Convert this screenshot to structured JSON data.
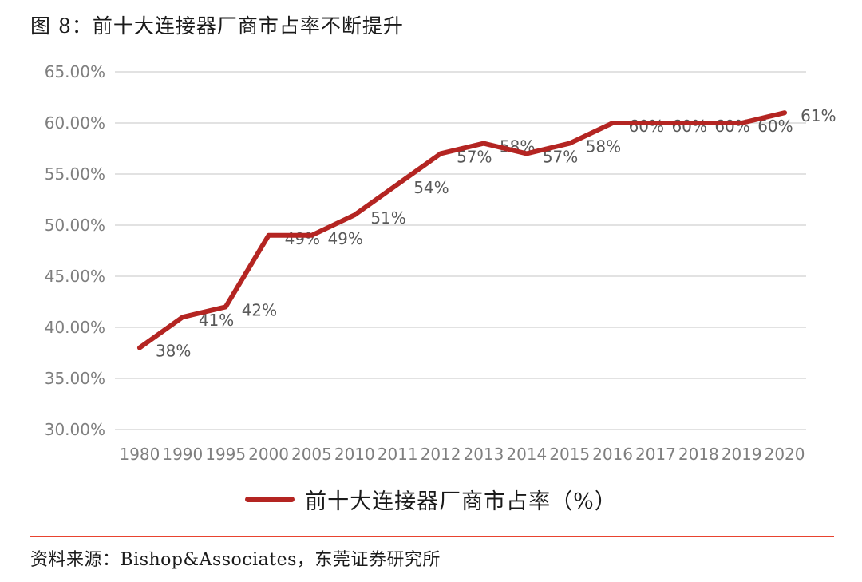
{
  "page": {
    "title": "图 8：前十大连接器厂商市占率不断提升",
    "source": "资料来源：Bishop&Associates，东莞证券研究所"
  },
  "legend": {
    "label": "前十大连接器厂商市占率（%）"
  },
  "colors": {
    "line": "#B42522",
    "divider": "#E8432F",
    "gridline": "#D9D9D9",
    "axis_label": "#7F7F7F",
    "data_label": "#595959"
  },
  "chart_data": {
    "type": "line",
    "title": "图 8：前十大连接器厂商市占率不断提升",
    "categories": [
      "1980",
      "1990",
      "1995",
      "2000",
      "2005",
      "2010",
      "2011",
      "2012",
      "2013",
      "2014",
      "2015",
      "2016",
      "2017",
      "2018",
      "2019",
      "2020"
    ],
    "series": [
      {
        "name": "前十大连接器厂商市占率（%）",
        "values": [
          38,
          41,
          42,
          49,
          49,
          51,
          54,
          57,
          58,
          57,
          58,
          60,
          60,
          60,
          60,
          61
        ]
      }
    ],
    "point_labels": [
      "38%",
      "41%",
      "42%",
      "49%",
      "49%",
      "51%",
      "54%",
      "57%",
      "58%",
      "57%",
      "58%",
      "60%",
      "60%",
      "60%",
      "60%",
      "61%"
    ],
    "y_ticks": [
      "65.00%",
      "60.00%",
      "55.00%",
      "50.00%",
      "45.00%",
      "40.00%",
      "35.00%",
      "30.00%"
    ],
    "ylim": [
      30,
      65
    ],
    "y_step": 5,
    "grid": true,
    "xlabel": "",
    "ylabel": "",
    "legend_position": "bottom"
  }
}
